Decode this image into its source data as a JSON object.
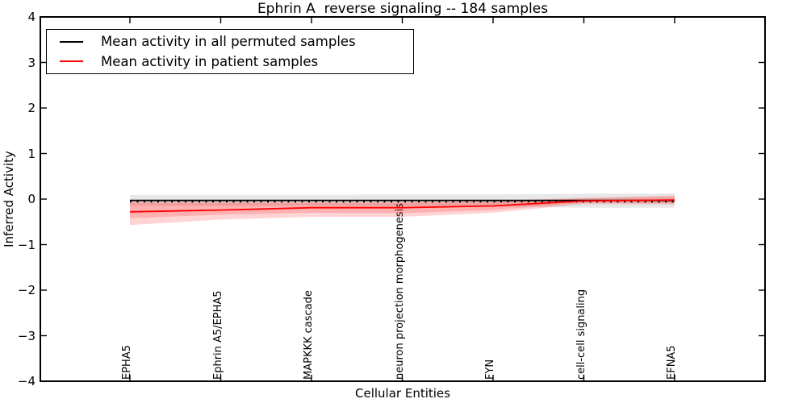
{
  "figure": {
    "title": "Ephrin A  reverse signaling -- 184 samples",
    "xlabel": "Cellular Entities",
    "ylabel": "Inferred Activity"
  },
  "legend": {
    "position": "upper left",
    "items": [
      {
        "label": "Mean activity in all permuted samples",
        "color": "#000000"
      },
      {
        "label": "Mean activity in patient samples",
        "color": "#ff0000"
      }
    ]
  },
  "chart_data": {
    "type": "line",
    "title": "Ephrin A  reverse signaling -- 184 samples",
    "xlabel": "Cellular Entities",
    "ylabel": "Inferred Activity",
    "ylim": [
      -4,
      4
    ],
    "yticks": [
      4,
      3,
      2,
      1,
      0,
      -1,
      -2,
      -3,
      -4
    ],
    "grid": false,
    "legend_position": "upper left",
    "categories": [
      "EPHA5",
      "Ephrin A5/EPHA5",
      "MAPKKK cascade",
      "neuron projection morphogenesis",
      "FYN",
      "cell-cell signaling",
      "EFNA5"
    ],
    "series": [
      {
        "name": "Mean activity in all permuted samples",
        "color": "#000000",
        "style": "solid",
        "values": [
          -0.03,
          -0.03,
          -0.03,
          -0.03,
          -0.03,
          -0.03,
          -0.03
        ]
      },
      {
        "name": "Mean activity in patient samples",
        "color": "#ff0000",
        "style": "solid",
        "values": [
          -0.28,
          -0.24,
          -0.19,
          -0.19,
          -0.15,
          -0.04,
          -0.02
        ]
      }
    ],
    "bands": [
      {
        "name": "permuted-samples-band",
        "color": "#000000",
        "opacity": 0.09,
        "upper": [
          0.09,
          0.09,
          0.09,
          0.1,
          0.1,
          0.12,
          0.12
        ],
        "lower": [
          -0.15,
          -0.15,
          -0.15,
          -0.16,
          -0.16,
          -0.19,
          -0.19
        ]
      },
      {
        "name": "patient-samples-band-outer",
        "color": "#ff0000",
        "opacity": 0.17,
        "upper": [
          -0.05,
          -0.05,
          -0.06,
          -0.06,
          -0.04,
          0.03,
          0.08
        ],
        "lower": [
          -0.57,
          -0.45,
          -0.39,
          -0.39,
          -0.3,
          -0.11,
          -0.12
        ]
      },
      {
        "name": "patient-samples-band-inner",
        "color": "#ff0000",
        "opacity": 0.17,
        "upper": [
          -0.08,
          -0.08,
          -0.08,
          -0.08,
          -0.06,
          0.01,
          0.05
        ],
        "lower": [
          -0.42,
          -0.34,
          -0.3,
          -0.31,
          -0.24,
          -0.08,
          -0.09
        ]
      }
    ],
    "reference_line": {
      "value": -0.06,
      "style": "dotted",
      "color": "#000000"
    }
  }
}
